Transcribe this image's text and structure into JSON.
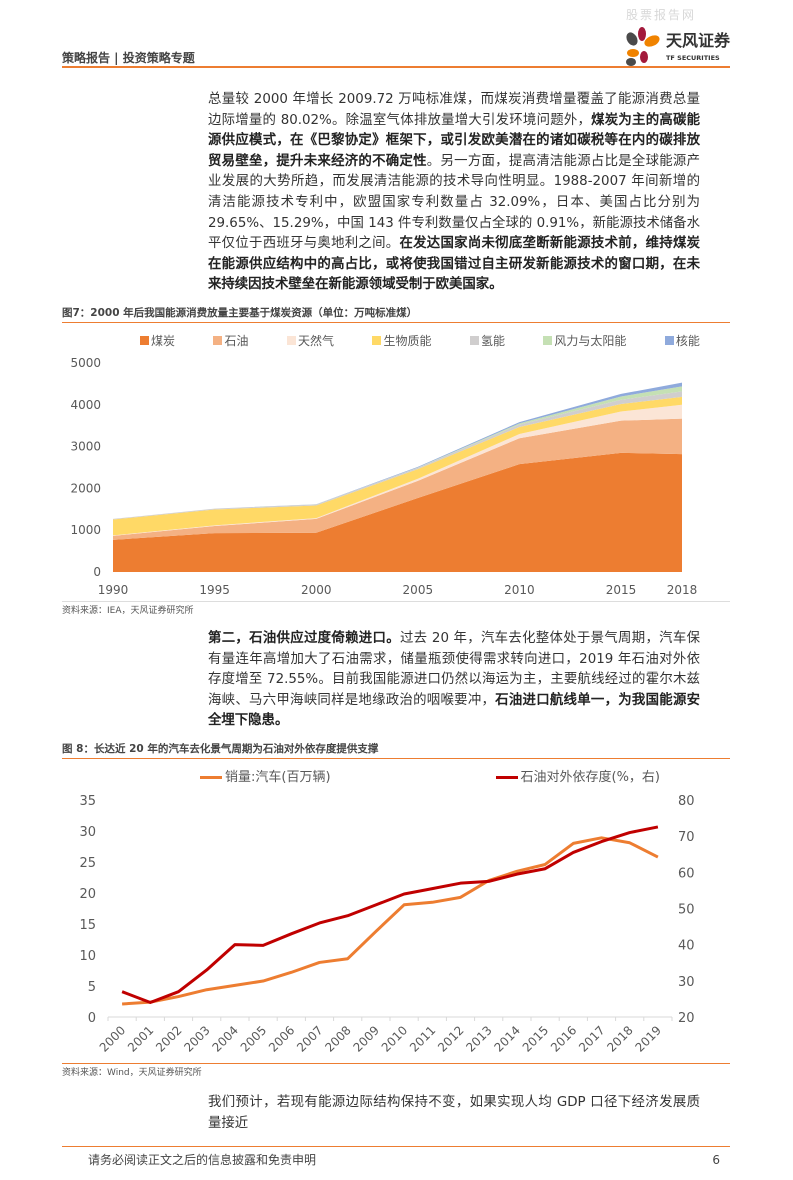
{
  "header": {
    "watermark": "股票报告网",
    "report_type": "策略报告 | 投资策略专题",
    "logo_cn": "天风证券",
    "logo_en": "TF SECURITIES"
  },
  "para1": [
    {
      "text": "总量较 2000 年增长 2009.72 万吨标准煤，而煤炭消费增量覆盖了能源消费总量边际增量的 80.02%。除温室气体排放量增大引发环境问题外，",
      "bold": false
    },
    {
      "text": "煤炭为主的高碳能源供应模式，在《巴黎协定》框架下，或引发欧美潜在的诸如碳税等在内的碳排放贸易壁垒，提升未来经济的不确定性",
      "bold": true
    },
    {
      "text": "。另一方面，提高清洁能源占比是全球能源产业发展的大势所趋，而发展清洁能源的技术导向性明显。1988-2007 年间新增的清洁能源技术专利中，欧盟国家专利数量占 32.09%，日本、美国占比分别为 29.65%、15.29%，中国 143 件专利数量仅占全球的 0.91%，新能源技术储备水平仅位于西班牙与奥地利之间。",
      "bold": false
    },
    {
      "text": "在发达国家尚未彻底垄断新能源技术前，维持煤炭在能源供应结构中的高占比，或将使我国错过自主研发新能源技术的窗口期，在未来持续因技术壁垒在新能源领域受制于欧美国家。",
      "bold": true
    }
  ],
  "figure7": {
    "title": "图7：2000 年后我国能源消费放量主要基于煤炭资源（单位：万吨标准煤）",
    "source": "资料来源：IEA，天风证券研究所"
  },
  "para2": [
    {
      "text": "第二，石油供应过度倚赖进口。",
      "bold": true
    },
    {
      "text": "过去 20 年，汽车去化整体处于景气周期，汽车保有量连年高增加大了石油需求，储量瓶颈使得需求转向进口，2019 年石油对外依存度增至 72.55%。目前我国能源进口仍然以海运为主，主要航线经过的霍尔木兹海峡、马六甲海峡同样是地缘政治的咽喉要冲，",
      "bold": false
    },
    {
      "text": "石油进口航线单一，为我国能源安全埋下隐患。",
      "bold": true
    }
  ],
  "figure8": {
    "title": "图 8：长达近 20 年的汽车去化景气周期为石油对外依存度提供支撑",
    "source": "资料来源：Wind，天风证券研究所"
  },
  "para3": "我们预计，若现有能源边际结构保持不变，如果实现人均 GDP 口径下经济发展质量接近",
  "footer": {
    "disclaimer": "请务必阅读正文之后的信息披露和免责申明",
    "page": "6"
  },
  "colors": {
    "accent": "#ed7d31"
  },
  "chart_data": [
    {
      "type": "area",
      "stacked": true,
      "x": [
        1990,
        1995,
        2000,
        2005,
        2010,
        2015,
        2018
      ],
      "xticks": [
        "1990",
        "1995",
        "2000",
        "2005",
        "2010",
        "2015",
        "2018"
      ],
      "ylim": [
        0,
        5000
      ],
      "yticks": [
        "0",
        "1000",
        "2000",
        "3000",
        "4000",
        "5000"
      ],
      "grid": false,
      "legend": "top",
      "series": [
        {
          "name": "煤炭",
          "color": "#ed7d31",
          "values": [
            770,
            930,
            940,
            1770,
            2580,
            2850,
            2820
          ]
        },
        {
          "name": "石油",
          "color": "#f4b183",
          "values": [
            95,
            170,
            330,
            410,
            620,
            770,
            850
          ]
        },
        {
          "name": "天然气",
          "color": "#fbe5d6",
          "values": [
            10,
            15,
            20,
            50,
            100,
            220,
            330
          ]
        },
        {
          "name": "生物质能",
          "color": "#ffd966",
          "values": [
            380,
            380,
            300,
            230,
            170,
            180,
            190
          ]
        },
        {
          "name": "氢能",
          "color": "#d0cece",
          "values": [
            15,
            20,
            25,
            35,
            60,
            100,
            130
          ]
        },
        {
          "name": "风力与太阳能",
          "color": "#c5e0b4",
          "values": [
            0,
            0,
            2,
            5,
            25,
            80,
            120
          ]
        },
        {
          "name": "核能",
          "color": "#8faadc",
          "values": [
            0,
            2,
            5,
            15,
            30,
            60,
            90
          ]
        }
      ]
    },
    {
      "type": "line",
      "categories": [
        "2000",
        "2001",
        "2002",
        "2003",
        "2004",
        "2005",
        "2006",
        "2007",
        "2008",
        "2009",
        "2010",
        "2011",
        "2012",
        "2013",
        "2014",
        "2015",
        "2016",
        "2017",
        "2018",
        "2019"
      ],
      "ylim": [
        0,
        35
      ],
      "yticks": [
        "0",
        "5",
        "10",
        "15",
        "20",
        "25",
        "30",
        "35"
      ],
      "y2lim": [
        20,
        80
      ],
      "y2ticks": [
        "20",
        "30",
        "40",
        "50",
        "60",
        "70",
        "80"
      ],
      "grid": false,
      "legend": "top",
      "series": [
        {
          "name": "销量:汽车(百万辆)",
          "axis": "left",
          "color": "#ed7d31",
          "values": [
            2.1,
            2.4,
            3.3,
            4.4,
            5.1,
            5.8,
            7.2,
            8.8,
            9.4,
            13.8,
            18.1,
            18.5,
            19.3,
            22.0,
            23.5,
            24.6,
            28.0,
            28.9,
            28.1,
            25.8
          ]
        },
        {
          "name": "石油对外依存度(%，右)",
          "axis": "right",
          "color": "#c00000",
          "values": [
            27,
            24,
            27,
            33,
            40,
            39.8,
            43,
            46,
            48,
            51,
            54,
            55.5,
            57,
            57.5,
            59.5,
            61,
            65.5,
            68.5,
            71,
            72.55
          ]
        }
      ]
    }
  ]
}
